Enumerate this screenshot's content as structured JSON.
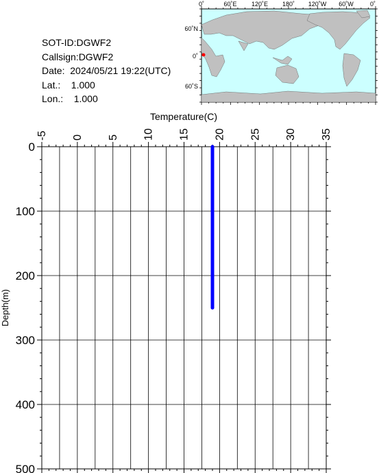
{
  "info": {
    "sot_id": "SOT-ID:DGWF2",
    "callsign": "Callsign:DGWF2",
    "date": "Date:  2024/05/21 19:22(UTC)",
    "lat": "Lat.:    1.000",
    "lon": "Lon.:    1.000"
  },
  "map": {
    "lon_labels": [
      "0˚",
      "60˚E",
      "120˚E",
      "180˚",
      "120˚W",
      "60˚W",
      "0˚"
    ],
    "lat_labels": [
      "60˚N",
      "0˚",
      "60˚S"
    ],
    "ocean_color": "#ccffff",
    "land_color": "#c0c0c0",
    "marker_color": "#ff0000",
    "marker": {
      "lon": 1.0,
      "lat": 1.0
    }
  },
  "chart_data": {
    "type": "line",
    "xlabel": "Temperature(C)",
    "ylabel": "Depth(m)",
    "xlim": [
      -5,
      35
    ],
    "ylim": [
      0,
      500
    ],
    "y_inverted": true,
    "x_ticks": [
      "-5",
      "0",
      "5",
      "10",
      "15",
      "20",
      "25",
      "30",
      "35"
    ],
    "y_ticks": [
      "0",
      "100",
      "200",
      "300",
      "400",
      "500"
    ],
    "grid": true,
    "series": [
      {
        "color": "#0000ff",
        "x": [
          19,
          19,
          19,
          19,
          19,
          19
        ],
        "y": [
          0,
          50,
          100,
          150,
          200,
          250
        ]
      }
    ]
  }
}
